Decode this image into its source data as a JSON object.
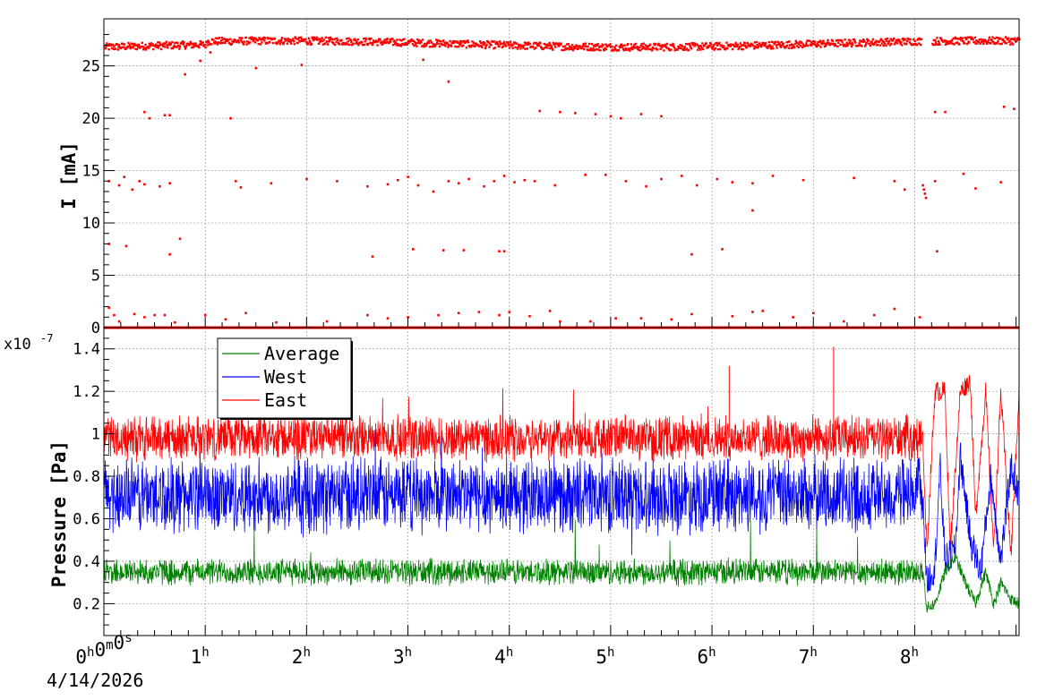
{
  "chart_data": [
    {
      "type": "scatter",
      "ylabel": "I [mA]",
      "ylim": [
        0,
        29.5
      ],
      "xlim_hours": [
        0,
        9.03
      ],
      "y_ticks": [
        0,
        5,
        10,
        15,
        20,
        25
      ],
      "grid": true,
      "series": [
        {
          "color": "#ff0000",
          "main_band": {
            "value": 27.1,
            "noise": 0.35
          },
          "baseline": {
            "value": 0
          },
          "points": [
            {
              "x": 0.05,
              "y": 14.0
            },
            {
              "x": 0.15,
              "y": 13.6
            },
            {
              "x": 0.2,
              "y": 14.4
            },
            {
              "x": 0.28,
              "y": 13.2
            },
            {
              "x": 0.35,
              "y": 14.0
            },
            {
              "x": 0.4,
              "y": 13.7
            },
            {
              "x": 0.55,
              "y": 13.5
            },
            {
              "x": 0.65,
              "y": 13.8
            },
            {
              "x": 1.3,
              "y": 14.0
            },
            {
              "x": 1.35,
              "y": 13.4
            },
            {
              "x": 1.65,
              "y": 13.8
            },
            {
              "x": 2.0,
              "y": 14.2
            },
            {
              "x": 2.3,
              "y": 14.0
            },
            {
              "x": 2.6,
              "y": 13.5
            },
            {
              "x": 2.8,
              "y": 13.7
            },
            {
              "x": 2.9,
              "y": 14.1
            },
            {
              "x": 3.0,
              "y": 14.4
            },
            {
              "x": 3.1,
              "y": 13.6
            },
            {
              "x": 3.25,
              "y": 13.0
            },
            {
              "x": 3.4,
              "y": 14.0
            },
            {
              "x": 3.5,
              "y": 13.8
            },
            {
              "x": 3.6,
              "y": 14.2
            },
            {
              "x": 3.75,
              "y": 13.5
            },
            {
              "x": 3.85,
              "y": 14.0
            },
            {
              "x": 3.95,
              "y": 14.5
            },
            {
              "x": 4.05,
              "y": 13.9
            },
            {
              "x": 4.15,
              "y": 14.1
            },
            {
              "x": 4.25,
              "y": 14.0
            },
            {
              "x": 4.45,
              "y": 13.6
            },
            {
              "x": 4.75,
              "y": 14.6
            },
            {
              "x": 4.95,
              "y": 14.6
            },
            {
              "x": 5.15,
              "y": 14.0
            },
            {
              "x": 5.35,
              "y": 13.5
            },
            {
              "x": 5.5,
              "y": 14.2
            },
            {
              "x": 5.7,
              "y": 14.5
            },
            {
              "x": 5.85,
              "y": 13.6
            },
            {
              "x": 6.05,
              "y": 14.2
            },
            {
              "x": 6.2,
              "y": 13.9
            },
            {
              "x": 6.4,
              "y": 13.8
            },
            {
              "x": 6.6,
              "y": 14.5
            },
            {
              "x": 6.9,
              "y": 14.1
            },
            {
              "x": 7.4,
              "y": 14.3
            },
            {
              "x": 7.8,
              "y": 14.0
            },
            {
              "x": 7.9,
              "y": 13.2
            },
            {
              "x": 8.48,
              "y": 14.7
            },
            {
              "x": 8.6,
              "y": 13.3
            },
            {
              "x": 8.85,
              "y": 13.9
            },
            {
              "x": 8.2,
              "y": 14.0
            },
            {
              "x": 8.08,
              "y": 13.6
            },
            {
              "x": 8.09,
              "y": 13.2
            },
            {
              "x": 8.1,
              "y": 12.8
            },
            {
              "x": 8.11,
              "y": 12.4
            },
            {
              "x": 0.4,
              "y": 20.6
            },
            {
              "x": 0.45,
              "y": 20.0
            },
            {
              "x": 0.6,
              "y": 20.3
            },
            {
              "x": 0.65,
              "y": 20.3
            },
            {
              "x": 1.25,
              "y": 20.0
            },
            {
              "x": 4.3,
              "y": 20.7
            },
            {
              "x": 4.5,
              "y": 20.6
            },
            {
              "x": 4.65,
              "y": 20.5
            },
            {
              "x": 4.85,
              "y": 20.4
            },
            {
              "x": 5.0,
              "y": 20.2
            },
            {
              "x": 5.1,
              "y": 20.0
            },
            {
              "x": 5.3,
              "y": 20.4
            },
            {
              "x": 5.5,
              "y": 20.2
            },
            {
              "x": 8.2,
              "y": 20.6
            },
            {
              "x": 8.3,
              "y": 20.6
            },
            {
              "x": 8.88,
              "y": 21.1
            },
            {
              "x": 8.98,
              "y": 20.9
            },
            {
              "x": 0.05,
              "y": 8.0
            },
            {
              "x": 0.22,
              "y": 7.8
            },
            {
              "x": 0.75,
              "y": 8.5
            },
            {
              "x": 0.65,
              "y": 7.0
            },
            {
              "x": 2.65,
              "y": 6.8
            },
            {
              "x": 3.05,
              "y": 7.5
            },
            {
              "x": 3.35,
              "y": 7.4
            },
            {
              "x": 3.55,
              "y": 7.4
            },
            {
              "x": 3.9,
              "y": 7.3
            },
            {
              "x": 3.95,
              "y": 7.3
            },
            {
              "x": 5.8,
              "y": 7.0
            },
            {
              "x": 6.1,
              "y": 7.5
            },
            {
              "x": 8.22,
              "y": 7.3
            },
            {
              "x": 0.8,
              "y": 24.2
            },
            {
              "x": 0.95,
              "y": 25.5
            },
            {
              "x": 1.5,
              "y": 24.8
            },
            {
              "x": 1.95,
              "y": 25.1
            },
            {
              "x": 3.4,
              "y": 23.5
            },
            {
              "x": 6.4,
              "y": 11.2
            },
            {
              "x": 1.05,
              "y": 26.3
            },
            {
              "x": 3.15,
              "y": 25.6
            },
            {
              "x": 0.05,
              "y": 1.9
            },
            {
              "x": 0.1,
              "y": 1.2
            },
            {
              "x": 0.15,
              "y": 0.6
            },
            {
              "x": 0.3,
              "y": 1.3
            },
            {
              "x": 0.4,
              "y": 1.0
            },
            {
              "x": 0.5,
              "y": 1.2
            },
            {
              "x": 0.6,
              "y": 1.2
            },
            {
              "x": 0.7,
              "y": 0.5
            },
            {
              "x": 1.0,
              "y": 1.2
            },
            {
              "x": 1.2,
              "y": 0.8
            },
            {
              "x": 1.4,
              "y": 1.4
            },
            {
              "x": 1.7,
              "y": 0.5
            },
            {
              "x": 2.2,
              "y": 0.6
            },
            {
              "x": 2.6,
              "y": 1.2
            },
            {
              "x": 2.8,
              "y": 0.9
            },
            {
              "x": 3.0,
              "y": 1.0
            },
            {
              "x": 3.3,
              "y": 1.2
            },
            {
              "x": 3.5,
              "y": 1.4
            },
            {
              "x": 3.7,
              "y": 1.5
            },
            {
              "x": 3.9,
              "y": 1.2
            },
            {
              "x": 4.0,
              "y": 1.5
            },
            {
              "x": 4.2,
              "y": 1.1
            },
            {
              "x": 4.4,
              "y": 1.6
            },
            {
              "x": 4.5,
              "y": 0.6
            },
            {
              "x": 4.8,
              "y": 0.6
            },
            {
              "x": 5.05,
              "y": 0.9
            },
            {
              "x": 5.3,
              "y": 0.9
            },
            {
              "x": 5.6,
              "y": 0.8
            },
            {
              "x": 5.8,
              "y": 1.3
            },
            {
              "x": 6.2,
              "y": 1.1
            },
            {
              "x": 6.4,
              "y": 1.5
            },
            {
              "x": 6.5,
              "y": 1.6
            },
            {
              "x": 6.8,
              "y": 1.0
            },
            {
              "x": 7.0,
              "y": 1.4
            },
            {
              "x": 7.3,
              "y": 0.6
            },
            {
              "x": 7.6,
              "y": 1.2
            },
            {
              "x": 7.8,
              "y": 1.8
            },
            {
              "x": 8.05,
              "y": 1.0
            }
          ]
        }
      ]
    },
    {
      "type": "line",
      "ylabel": "Pressure [Pa]",
      "exponent_label": "x10",
      "exponent_sup": "-7",
      "ylim": [
        0.05,
        1.5
      ],
      "y_ticks": [
        0.2,
        0.4,
        0.6,
        0.8,
        1.0,
        1.2,
        1.4
      ],
      "y_tick_labels": [
        "0.2",
        "0.4",
        "0.6",
        "0.8",
        "1",
        "1.2",
        "1.4"
      ],
      "grid": true,
      "legend_position": "top-left",
      "x_ticks": [
        "0",
        "1",
        "2",
        "3",
        "4",
        "5",
        "6",
        "7",
        "8"
      ],
      "x_tick_start": {
        "h": "0",
        "m": "0",
        "s": "0"
      },
      "x_tick_unit": "h",
      "x_unit_labels": {
        "h": "h",
        "m": "m",
        "s": "s"
      },
      "date_label": "4/14/2026",
      "series": [
        {
          "name": "Average",
          "color": "#008000",
          "mean": 0.35,
          "noise": 0.07,
          "late": {
            "from": 8.08,
            "values": [
              [
                8.08,
                0.37
              ],
              [
                8.12,
                0.18
              ],
              [
                8.2,
                0.2
              ],
              [
                8.3,
                0.35
              ],
              [
                8.4,
                0.42
              ],
              [
                8.5,
                0.3
              ],
              [
                8.6,
                0.2
              ],
              [
                8.7,
                0.35
              ],
              [
                8.78,
                0.2
              ],
              [
                8.85,
                0.3
              ],
              [
                8.95,
                0.22
              ],
              [
                9.03,
                0.2
              ]
            ]
          }
        },
        {
          "name": "West",
          "color": "#0000ff",
          "mean": 0.71,
          "noise": 0.2,
          "late": {
            "from": 8.08,
            "values": [
              [
                8.08,
                0.7
              ],
              [
                8.12,
                0.3
              ],
              [
                8.2,
                0.38
              ],
              [
                8.25,
                0.85
              ],
              [
                8.3,
                0.4
              ],
              [
                8.4,
                0.45
              ],
              [
                8.45,
                0.9
              ],
              [
                8.55,
                0.5
              ],
              [
                8.65,
                0.35
              ],
              [
                8.75,
                0.8
              ],
              [
                8.85,
                0.4
              ],
              [
                8.95,
                0.85
              ],
              [
                9.03,
                0.7
              ]
            ]
          }
        },
        {
          "name": "East",
          "color": "#ff0000",
          "mean": 0.98,
          "noise": 0.12,
          "late": {
            "from": 8.08,
            "values": [
              [
                8.08,
                0.98
              ],
              [
                8.12,
                0.45
              ],
              [
                8.2,
                1.2
              ],
              [
                8.3,
                1.2
              ],
              [
                8.35,
                0.45
              ],
              [
                8.45,
                1.2
              ],
              [
                8.55,
                1.25
              ],
              [
                8.6,
                0.6
              ],
              [
                8.7,
                1.2
              ],
              [
                8.78,
                0.45
              ],
              [
                8.85,
                1.2
              ],
              [
                8.95,
                0.42
              ],
              [
                9.03,
                1.2
              ]
            ]
          }
        }
      ]
    }
  ]
}
